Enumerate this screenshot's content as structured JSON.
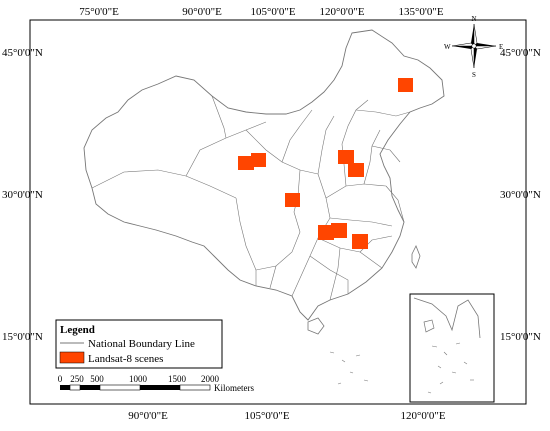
{
  "axis_labels": {
    "top": [
      "75°0'0\"E",
      "90°0'0\"E",
      "105°0'0\"E",
      "120°0'0\"E",
      "135°0'0\"E"
    ],
    "bottom": [
      "90°0'0\"E",
      "105°0'0\"E",
      "120°0'0\"E"
    ],
    "left": [
      "45°0'0\"N",
      "30°0'0\"N",
      "15°0'0\"N"
    ],
    "right": [
      "45°0'0\"N",
      "30°0'0\"N",
      "15°0'0\"N"
    ]
  },
  "compass": {
    "n": "N",
    "s": "S",
    "e": "E",
    "w": "W"
  },
  "legend": {
    "title": "Legend",
    "items": [
      {
        "label": "National Boundary Line",
        "symbol": "line"
      },
      {
        "label": "Landsat-8 scenes",
        "symbol": "patch",
        "color": "#ff4500"
      }
    ]
  },
  "scale_bar": {
    "ticks": [
      "0",
      "250",
      "500",
      "1000",
      "1500",
      "2000"
    ],
    "unit": "Kilometers"
  },
  "colors": {
    "scene": "#ff4500",
    "boundary": "#777777",
    "frame": "#000000"
  }
}
